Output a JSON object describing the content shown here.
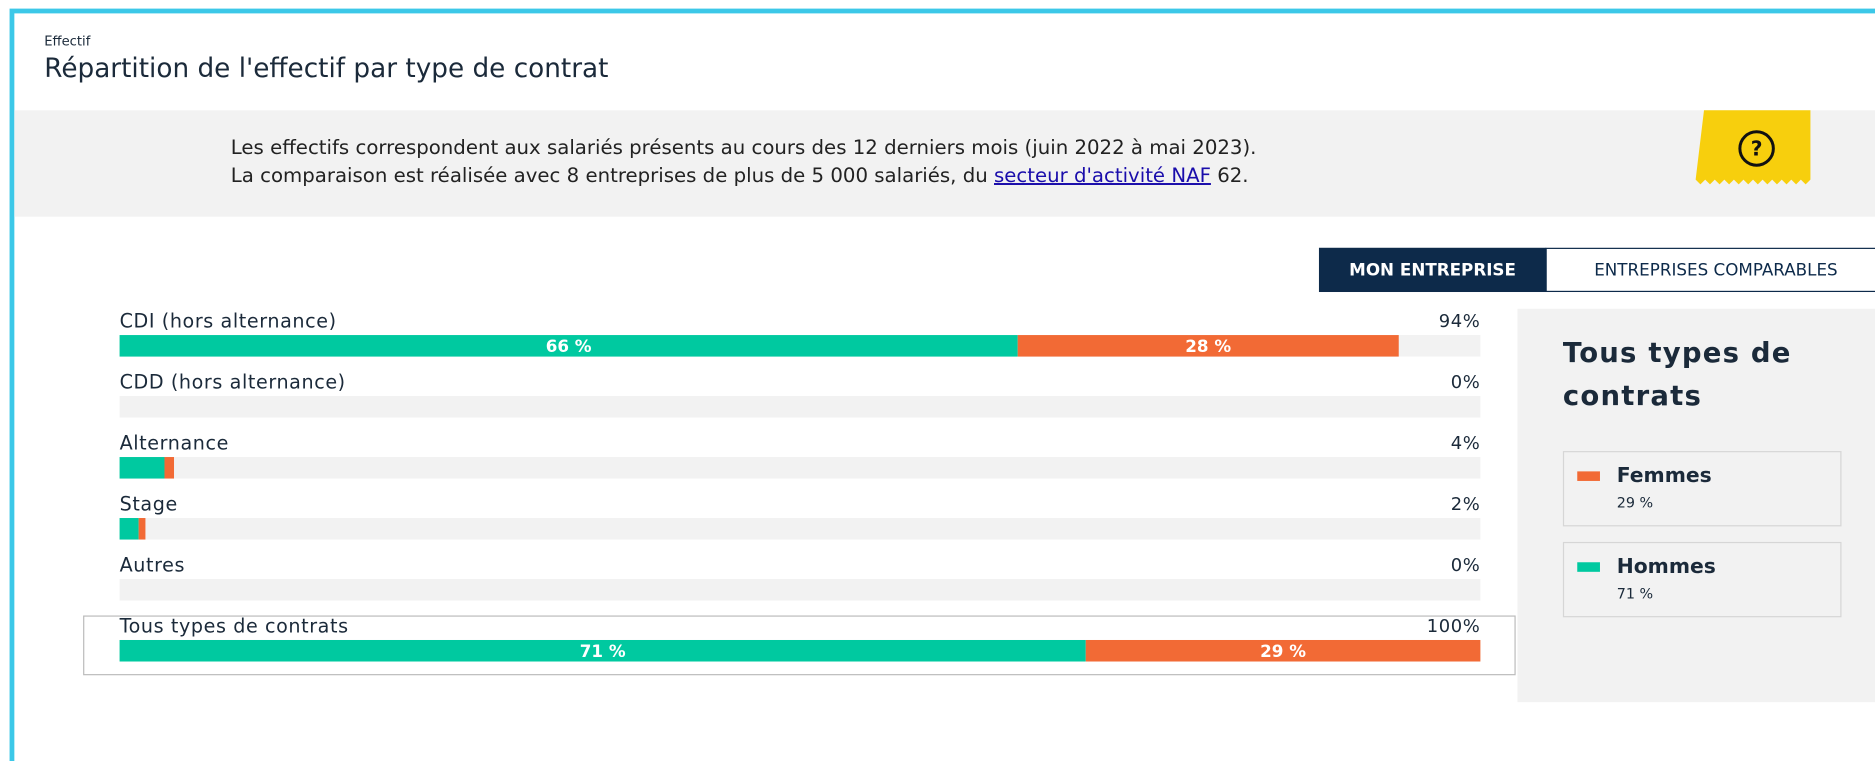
{
  "header": {
    "kicker": "Effectif",
    "title": "Répartition de l'effectif par type de contrat"
  },
  "notice": {
    "line1": "Les effectifs correspondent aux salariés présents au cours des 12 derniers mois (juin 2022 à mai 2023).",
    "line2": "La comparaison est réalisée avec 8 entreprises de plus de 5 000 salariés, du ",
    "link": "secteur d'activité NAF",
    "line2_end": " 62."
  },
  "tabs": [
    "MON ENTREPRISE",
    "ENTREPRISES COMPARABLES"
  ],
  "chart_data": {
    "type": "stacked_barh",
    "categories": [
      "CDI (hors alternance)",
      "CDD (hors alternance)",
      "Alternance",
      "Stage",
      "Autres",
      "Tous types de contrats"
    ],
    "series": [
      {
        "name": "Hommes",
        "color": "#00c9a0",
        "values": [
          66,
          0,
          3.3,
          1.4,
          0,
          71
        ],
        "value_labels": [
          "66 %",
          null,
          null,
          null,
          null,
          "71 %"
        ],
        "share_label": "71 %"
      },
      {
        "name": "Femmes",
        "color": "#f26a35",
        "values": [
          28,
          0,
          0.7,
          0.5,
          0,
          29
        ],
        "value_labels": [
          "28 %",
          null,
          null,
          null,
          null,
          "29 %"
        ],
        "share_label": "29 %"
      }
    ],
    "totals": [
      94,
      0,
      4,
      2,
      0,
      100
    ],
    "total_labels": [
      "94%",
      "0%",
      "4%",
      "2%",
      "0%",
      "100%"
    ],
    "xlim": [
      0,
      100
    ],
    "legend_title": "Tous types de contrats"
  }
}
